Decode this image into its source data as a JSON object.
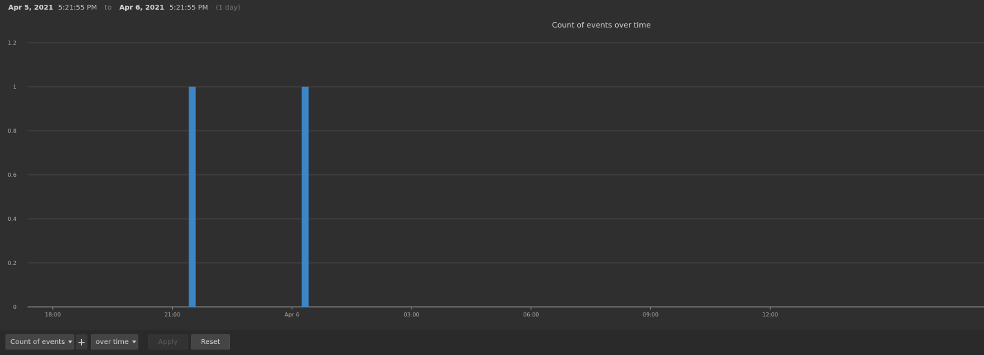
{
  "time_range": {
    "start_date": "Apr 5, 2021",
    "start_time": "5:21:55 PM",
    "separator": "to",
    "end_date": "Apr 6, 2021",
    "end_time": "5:21:55 PM",
    "duration": "(1 day)"
  },
  "chart_data": {
    "type": "bar",
    "title": "Count of events over time",
    "xlabel": "",
    "ylabel": "",
    "x_range": [
      "Apr 5, 2021 17:21:55",
      "Apr 6, 2021 17:21:55"
    ],
    "x_ticks": [
      "18:00",
      "21:00",
      "Apr 6",
      "03:00",
      "06:00",
      "09:00",
      "12:00"
    ],
    "y_ticks": [
      "0",
      "0.2",
      "0.4",
      "0.6",
      "0.8",
      "1",
      "1.2"
    ],
    "ylim": [
      0,
      1.2
    ],
    "grid": true,
    "legend": "none",
    "bar_color": "#3d86c6",
    "bars": [
      {
        "x": "Apr 5, 2021 21:30",
        "value": 1
      },
      {
        "x": "Apr 6, 2021 00:20",
        "value": 1
      }
    ]
  },
  "toolbar": {
    "metric_label": "Count of events",
    "add_label": "+",
    "over_label": "over time",
    "apply_label": "Apply",
    "reset_label": "Reset"
  }
}
